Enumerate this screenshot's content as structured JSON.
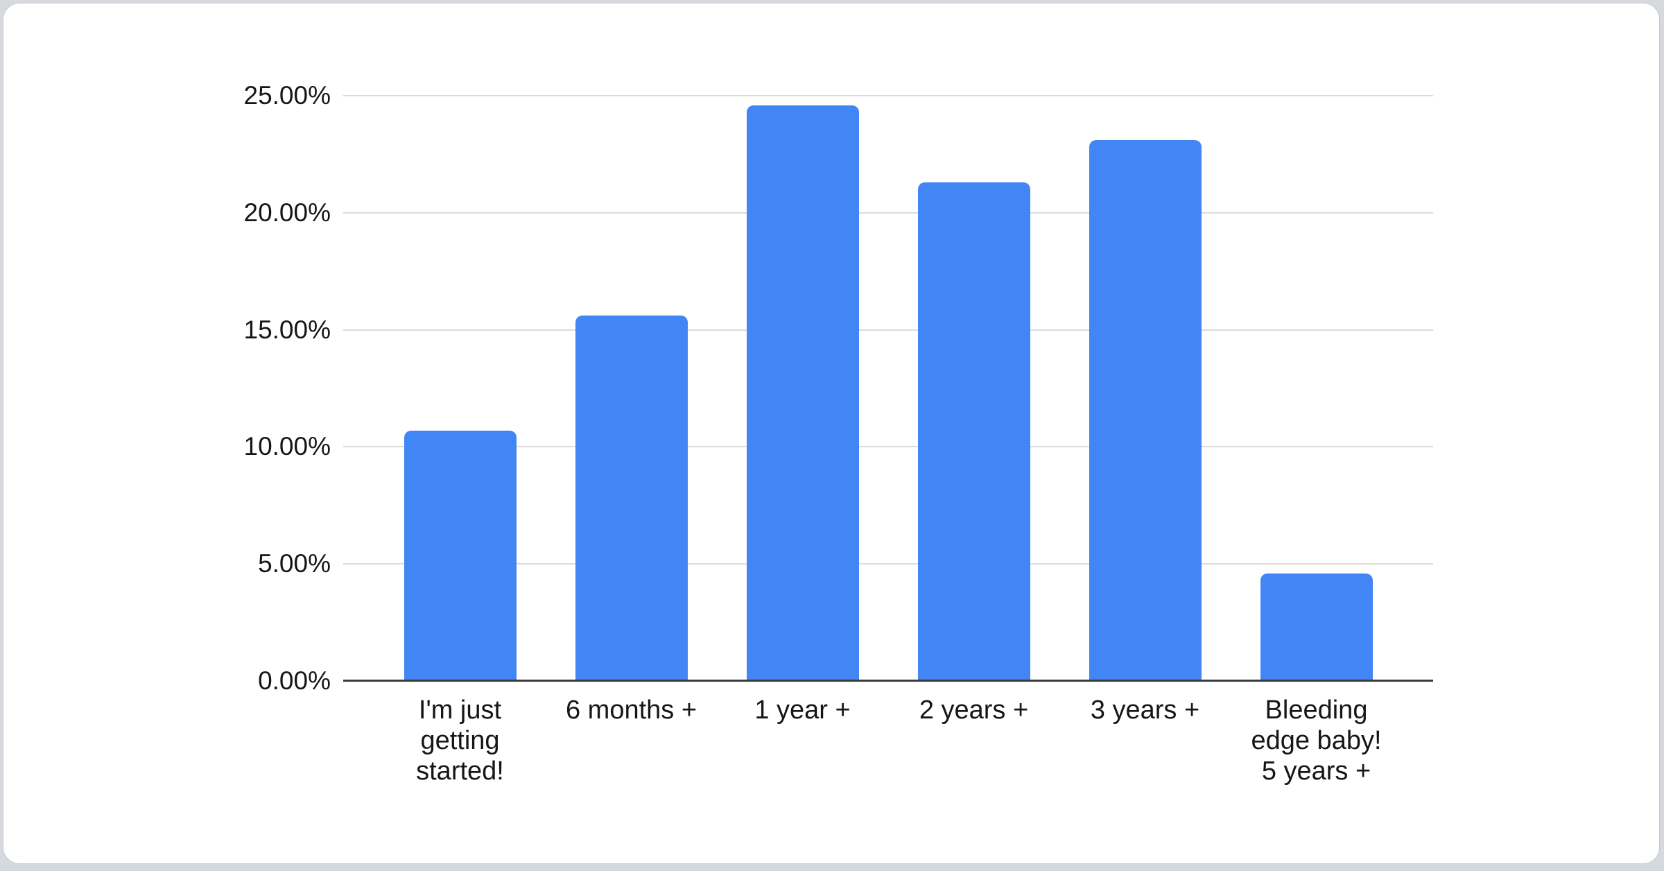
{
  "page": {
    "background_color": "#d6d9dd",
    "card_background": "#ffffff",
    "card_border_color": "#c6c9ce"
  },
  "chart_data": {
    "type": "bar",
    "title": "",
    "xlabel": "",
    "ylabel": "",
    "categories": [
      "I'm just getting started!",
      "6 months +",
      "1 year +",
      "2 years +",
      "3 years +",
      "Bleeding edge baby! 5 years +"
    ],
    "category_display": [
      "I'm just\ngetting\nstarted!",
      "6 months +",
      "1 year +",
      "2 years +",
      "3 years +",
      "Bleeding\nedge baby!\n5 years +"
    ],
    "values": [
      10.7,
      15.6,
      24.6,
      21.3,
      23.1,
      4.6
    ],
    "unit": "%",
    "ylim": [
      0,
      25
    ],
    "yticks": [
      {
        "value": 0,
        "label": "0.00%"
      },
      {
        "value": 5,
        "label": "5.00%"
      },
      {
        "value": 10,
        "label": "10.00%"
      },
      {
        "value": 15,
        "label": "15.00%"
      },
      {
        "value": 20,
        "label": "20.00%"
      },
      {
        "value": 25,
        "label": "25.00%"
      }
    ],
    "grid": true,
    "legend": "none",
    "bar_color": "#4285f4",
    "gridline_color": "#dbdbdb",
    "axis_color": "#3a3a3a",
    "text_color": "#161616"
  }
}
